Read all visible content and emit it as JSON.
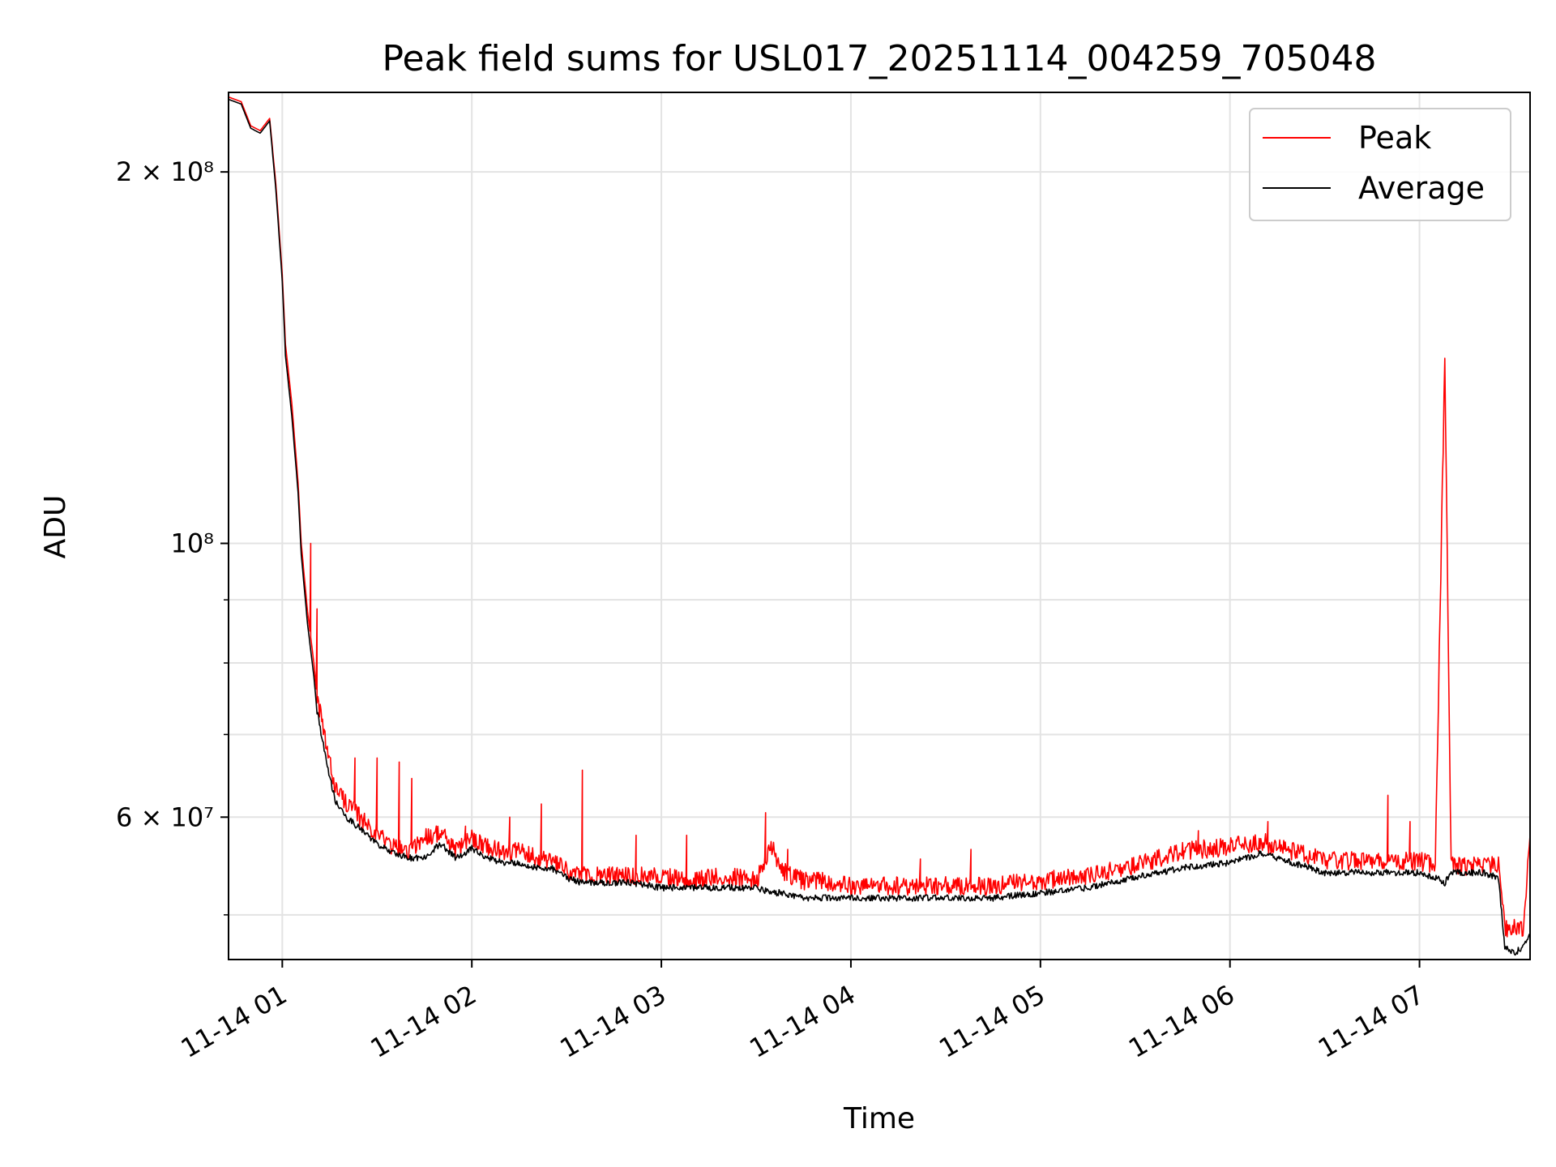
{
  "chart_data": {
    "type": "line",
    "title": "Peak field sums for USL017_20251114_004259_705048",
    "xlabel": "Time",
    "ylabel": "ADU",
    "y_scale": "log",
    "ylim": [
      46000000,
      232000000
    ],
    "xlim": [
      "2025-11-14 00:42:59",
      "2025-11-14 07:35:00"
    ],
    "grid": true,
    "legend_position": "top-right",
    "x_ticks": [
      {
        "at": "2025-11-14 01:00",
        "label": "11-14 01"
      },
      {
        "at": "2025-11-14 02:00",
        "label": "11-14 02"
      },
      {
        "at": "2025-11-14 03:00",
        "label": "11-14 03"
      },
      {
        "at": "2025-11-14 04:00",
        "label": "11-14 04"
      },
      {
        "at": "2025-11-14 05:00",
        "label": "11-14 05"
      },
      {
        "at": "2025-11-14 06:00",
        "label": "11-14 06"
      },
      {
        "at": "2025-11-14 07:00",
        "label": "11-14 07"
      }
    ],
    "y_ticks": [
      {
        "value": 200000000,
        "label": "2 × 10⁸"
      },
      {
        "value": 100000000,
        "label": "10⁸"
      },
      {
        "value": 60000000,
        "label": "6 × 10⁷"
      }
    ],
    "y_minor_ticks": [
      50000000,
      70000000,
      80000000,
      90000000
    ],
    "series": [
      {
        "name": "Peak",
        "color": "#ff0000",
        "x": [
          "2025-11-14 00:43",
          "2025-11-14 00:47",
          "2025-11-14 00:50",
          "2025-11-14 00:53",
          "2025-11-14 00:56",
          "2025-11-14 00:58",
          "2025-11-14 01:00",
          "2025-11-14 01:01",
          "2025-11-14 01:03",
          "2025-11-14 01:05",
          "2025-11-14 01:06",
          "2025-11-14 01:08",
          "2025-11-14 01:10",
          "2025-11-14 01:11",
          "2025-11-14 01:13",
          "2025-11-14 01:15",
          "2025-11-14 01:17",
          "2025-11-14 01:20",
          "2025-11-14 01:25",
          "2025-11-14 01:30",
          "2025-11-14 01:35",
          "2025-11-14 01:40",
          "2025-11-14 01:45",
          "2025-11-14 01:50",
          "2025-11-14 01:55",
          "2025-11-14 02:00",
          "2025-11-14 02:05",
          "2025-11-14 02:10",
          "2025-11-14 02:15",
          "2025-11-14 02:20",
          "2025-11-14 02:25",
          "2025-11-14 02:30",
          "2025-11-14 02:35",
          "2025-11-14 02:40",
          "2025-11-14 02:50",
          "2025-11-14 03:00",
          "2025-11-14 03:10",
          "2025-11-14 03:20",
          "2025-11-14 03:30",
          "2025-11-14 03:35",
          "2025-11-14 03:38",
          "2025-11-14 03:45",
          "2025-11-14 03:50",
          "2025-11-14 04:00",
          "2025-11-14 04:15",
          "2025-11-14 04:30",
          "2025-11-14 04:45",
          "2025-11-14 05:00",
          "2025-11-14 05:15",
          "2025-11-14 05:30",
          "2025-11-14 05:45",
          "2025-11-14 06:00",
          "2025-11-14 06:10",
          "2025-11-14 06:20",
          "2025-11-14 06:30",
          "2025-11-14 06:45",
          "2025-11-14 07:00",
          "2025-11-14 07:05",
          "2025-11-14 07:08",
          "2025-11-14 07:10",
          "2025-11-14 07:20",
          "2025-11-14 07:25",
          "2025-11-14 07:27",
          "2025-11-14 07:30",
          "2025-11-14 07:33",
          "2025-11-14 07:35"
        ],
        "values": [
          230000000,
          228000000,
          218000000,
          216000000,
          221000000,
          195000000,
          165000000,
          145000000,
          130000000,
          112000000,
          100000000,
          88000000,
          80000000,
          75000000,
          70000000,
          66000000,
          63000000,
          61500000,
          59500000,
          58000000,
          56500000,
          56000000,
          57500000,
          58000000,
          56000000,
          57500000,
          56500000,
          56000000,
          56000000,
          55500000,
          55000000,
          54000000,
          53500000,
          53500000,
          53500000,
          53500000,
          53000000,
          53500000,
          53000000,
          56500000,
          54000000,
          53000000,
          53000000,
          52500000,
          52500000,
          52500000,
          52500000,
          53000000,
          53500000,
          54500000,
          56000000,
          56500000,
          57000000,
          56000000,
          55000000,
          55000000,
          55000000,
          54500000,
          140000000,
          54500000,
          54500000,
          54500000,
          48500000,
          48500000,
          48500000,
          58000000
        ],
        "spikes": [
          {
            "x": "2025-11-14 01:09",
            "value": 100000000
          },
          {
            "x": "2025-11-14 01:11",
            "value": 88500000
          },
          {
            "x": "2025-11-14 01:23",
            "value": 67000000
          },
          {
            "x": "2025-11-14 01:30",
            "value": 67000000
          },
          {
            "x": "2025-11-14 01:37",
            "value": 66500000
          },
          {
            "x": "2025-11-14 01:41",
            "value": 64500000
          },
          {
            "x": "2025-11-14 01:58",
            "value": 59000000
          },
          {
            "x": "2025-11-14 02:12",
            "value": 60000000
          },
          {
            "x": "2025-11-14 02:22",
            "value": 61500000
          },
          {
            "x": "2025-11-14 02:35",
            "value": 65500000
          },
          {
            "x": "2025-11-14 02:52",
            "value": 58000000
          },
          {
            "x": "2025-11-14 03:08",
            "value": 58000000
          },
          {
            "x": "2025-11-14 03:33",
            "value": 60500000
          },
          {
            "x": "2025-11-14 03:40",
            "value": 56500000
          },
          {
            "x": "2025-11-14 04:22",
            "value": 55500000
          },
          {
            "x": "2025-11-14 04:38",
            "value": 56500000
          },
          {
            "x": "2025-11-14 05:50",
            "value": 58500000
          },
          {
            "x": "2025-11-14 06:12",
            "value": 59500000
          },
          {
            "x": "2025-11-14 06:50",
            "value": 62500000
          },
          {
            "x": "2025-11-14 06:57",
            "value": 59500000
          }
        ]
      },
      {
        "name": "Average",
        "color": "#000000",
        "x": [
          "2025-11-14 00:43",
          "2025-11-14 00:47",
          "2025-11-14 00:50",
          "2025-11-14 00:53",
          "2025-11-14 00:56",
          "2025-11-14 00:58",
          "2025-11-14 01:00",
          "2025-11-14 01:01",
          "2025-11-14 01:03",
          "2025-11-14 01:05",
          "2025-11-14 01:06",
          "2025-11-14 01:08",
          "2025-11-14 01:10",
          "2025-11-14 01:11",
          "2025-11-14 01:13",
          "2025-11-14 01:15",
          "2025-11-14 01:17",
          "2025-11-14 01:20",
          "2025-11-14 01:25",
          "2025-11-14 01:30",
          "2025-11-14 01:35",
          "2025-11-14 01:40",
          "2025-11-14 01:45",
          "2025-11-14 01:50",
          "2025-11-14 01:55",
          "2025-11-14 02:00",
          "2025-11-14 02:05",
          "2025-11-14 02:10",
          "2025-11-14 02:15",
          "2025-11-14 02:20",
          "2025-11-14 02:25",
          "2025-11-14 02:30",
          "2025-11-14 02:35",
          "2025-11-14 02:40",
          "2025-11-14 02:50",
          "2025-11-14 03:00",
          "2025-11-14 03:10",
          "2025-11-14 03:20",
          "2025-11-14 03:30",
          "2025-11-14 03:35",
          "2025-11-14 03:38",
          "2025-11-14 03:45",
          "2025-11-14 03:50",
          "2025-11-14 04:00",
          "2025-11-14 04:15",
          "2025-11-14 04:30",
          "2025-11-14 04:45",
          "2025-11-14 05:00",
          "2025-11-14 05:15",
          "2025-11-14 05:30",
          "2025-11-14 05:45",
          "2025-11-14 06:00",
          "2025-11-14 06:10",
          "2025-11-14 06:20",
          "2025-11-14 06:30",
          "2025-11-14 06:45",
          "2025-11-14 07:00",
          "2025-11-14 07:05",
          "2025-11-14 07:08",
          "2025-11-14 07:10",
          "2025-11-14 07:20",
          "2025-11-14 07:25",
          "2025-11-14 07:27",
          "2025-11-14 07:30",
          "2025-11-14 07:33",
          "2025-11-14 07:35"
        ],
        "values": [
          229000000,
          227000000,
          217000000,
          215000000,
          220000000,
          193000000,
          163000000,
          142000000,
          127000000,
          110000000,
          98000000,
          86000000,
          78000000,
          73000000,
          68500000,
          64500000,
          61500000,
          60000000,
          58500000,
          57000000,
          56000000,
          55500000,
          55500000,
          57000000,
          55500000,
          56500000,
          55500000,
          55000000,
          55000000,
          54500000,
          54500000,
          53500000,
          53000000,
          53000000,
          53000000,
          52500000,
          52500000,
          52500000,
          52500000,
          52000000,
          52000000,
          51500000,
          51500000,
          51500000,
          51500000,
          51500000,
          51500000,
          52000000,
          52500000,
          53500000,
          54500000,
          55000000,
          56000000,
          55000000,
          54000000,
          54000000,
          54000000,
          53500000,
          53000000,
          54000000,
          54000000,
          53500000,
          47000000,
          46500000,
          47000000,
          48000000
        ]
      }
    ]
  }
}
